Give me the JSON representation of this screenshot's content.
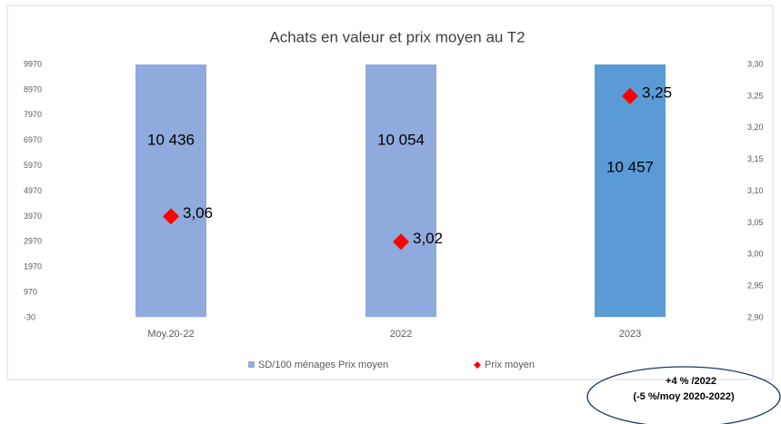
{
  "chart_data": {
    "type": "bar",
    "title": "Achats en valeur et prix moyen au T2",
    "categories": [
      "Moy.20-22",
      "2022",
      "2023"
    ],
    "series": [
      {
        "name": "SD/100 ménages Prix moyen",
        "type": "bar",
        "colors": [
          "#8faadc",
          "#8faadc",
          "#5b9bd5"
        ],
        "values": [
          10436,
          10054,
          10457
        ],
        "value_labels": [
          "10 436",
          "10 054",
          "10 457"
        ]
      },
      {
        "name": "Prix moyen",
        "type": "scatter",
        "axis": "y2",
        "color": "#ff0000",
        "values": [
          3.06,
          3.02,
          3.25
        ],
        "value_labels": [
          "3,06",
          "3,02",
          "3,25"
        ]
      }
    ],
    "ylim": [
      -30,
      9970
    ],
    "yticks": [
      -30,
      970,
      1970,
      2970,
      3970,
      4970,
      5970,
      6970,
      7970,
      8970,
      9970
    ],
    "y2lim": [
      2.9,
      3.3
    ],
    "y2ticks": [
      {
        "value": 2.9,
        "label": "2,90"
      },
      {
        "value": 2.95,
        "label": "2,95"
      },
      {
        "value": 3.0,
        "label": "3,00"
      },
      {
        "value": 3.05,
        "label": "3,05"
      },
      {
        "value": 3.1,
        "label": "3,10"
      },
      {
        "value": 3.15,
        "label": "3,15"
      },
      {
        "value": 3.2,
        "label": "3,20"
      },
      {
        "value": 3.25,
        "label": "3,25"
      },
      {
        "value": 3.3,
        "label": "3,30"
      }
    ],
    "annotations": [
      "+4 % /2022",
      "(-5 %/moy 2020-2022)"
    ]
  }
}
